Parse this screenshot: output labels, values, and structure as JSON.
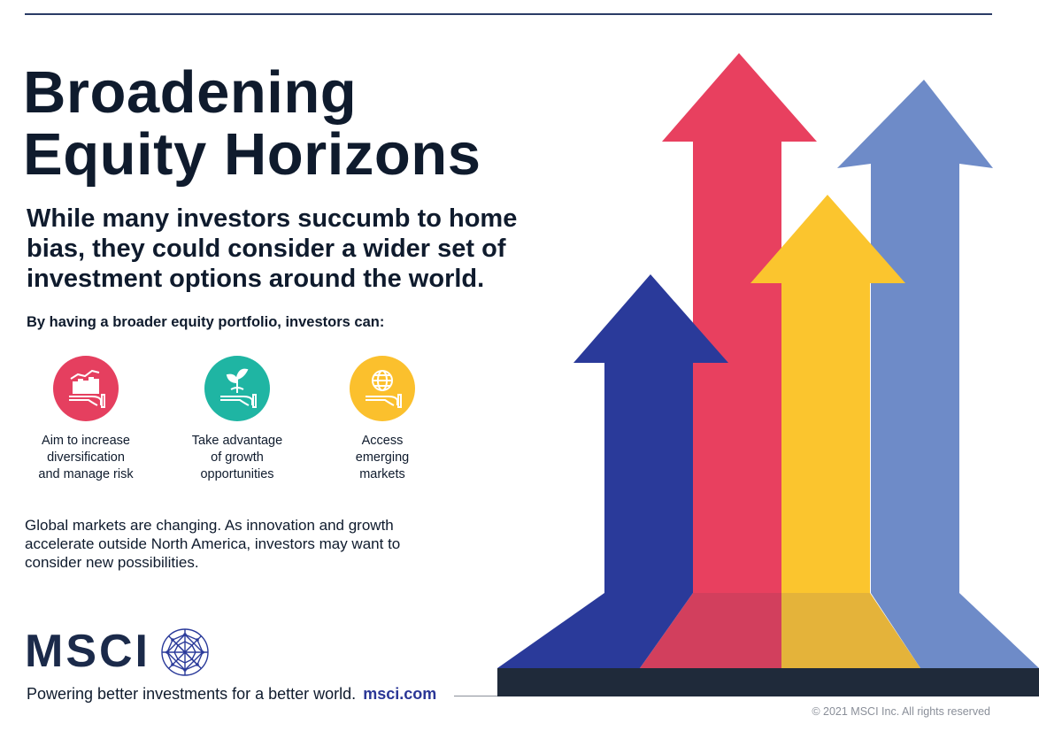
{
  "title": {
    "line1": "Broadening",
    "line2": "Equity Horizons"
  },
  "subtitle": "While many investors succumb to home bias, they could consider a wider set of investment options around the world.",
  "lead": "By having a broader equity portfolio, investors can:",
  "benefits": [
    {
      "icon": "chart-hand-icon",
      "color": "#e53f5f",
      "line1": "Aim to increase",
      "line2": "diversification",
      "line3": "and manage risk"
    },
    {
      "icon": "sprout-hand-icon",
      "color": "#1fb5a3",
      "line1": "Take advantage",
      "line2": "of growth",
      "line3": "opportunities"
    },
    {
      "icon": "globe-hand-icon",
      "color": "#fbc02d",
      "line1": "Access",
      "line2": "emerging",
      "line3": "markets"
    }
  ],
  "body": "Global markets are changing. As innovation and growth accelerate outside North America, investors may want to consider new possibilities.",
  "logo": {
    "wordmark": "MSCI"
  },
  "tagline": {
    "text": "Powering better investments for a better world.",
    "url": "msci.com"
  },
  "copyright": "© 2021 MSCI Inc. All rights reserved",
  "colors": {
    "navy": "#2a3a9a",
    "red": "#e8405f",
    "yellow": "#fbc52e",
    "periwinkle": "#6e8bc8",
    "base": "#1f2a3a"
  }
}
